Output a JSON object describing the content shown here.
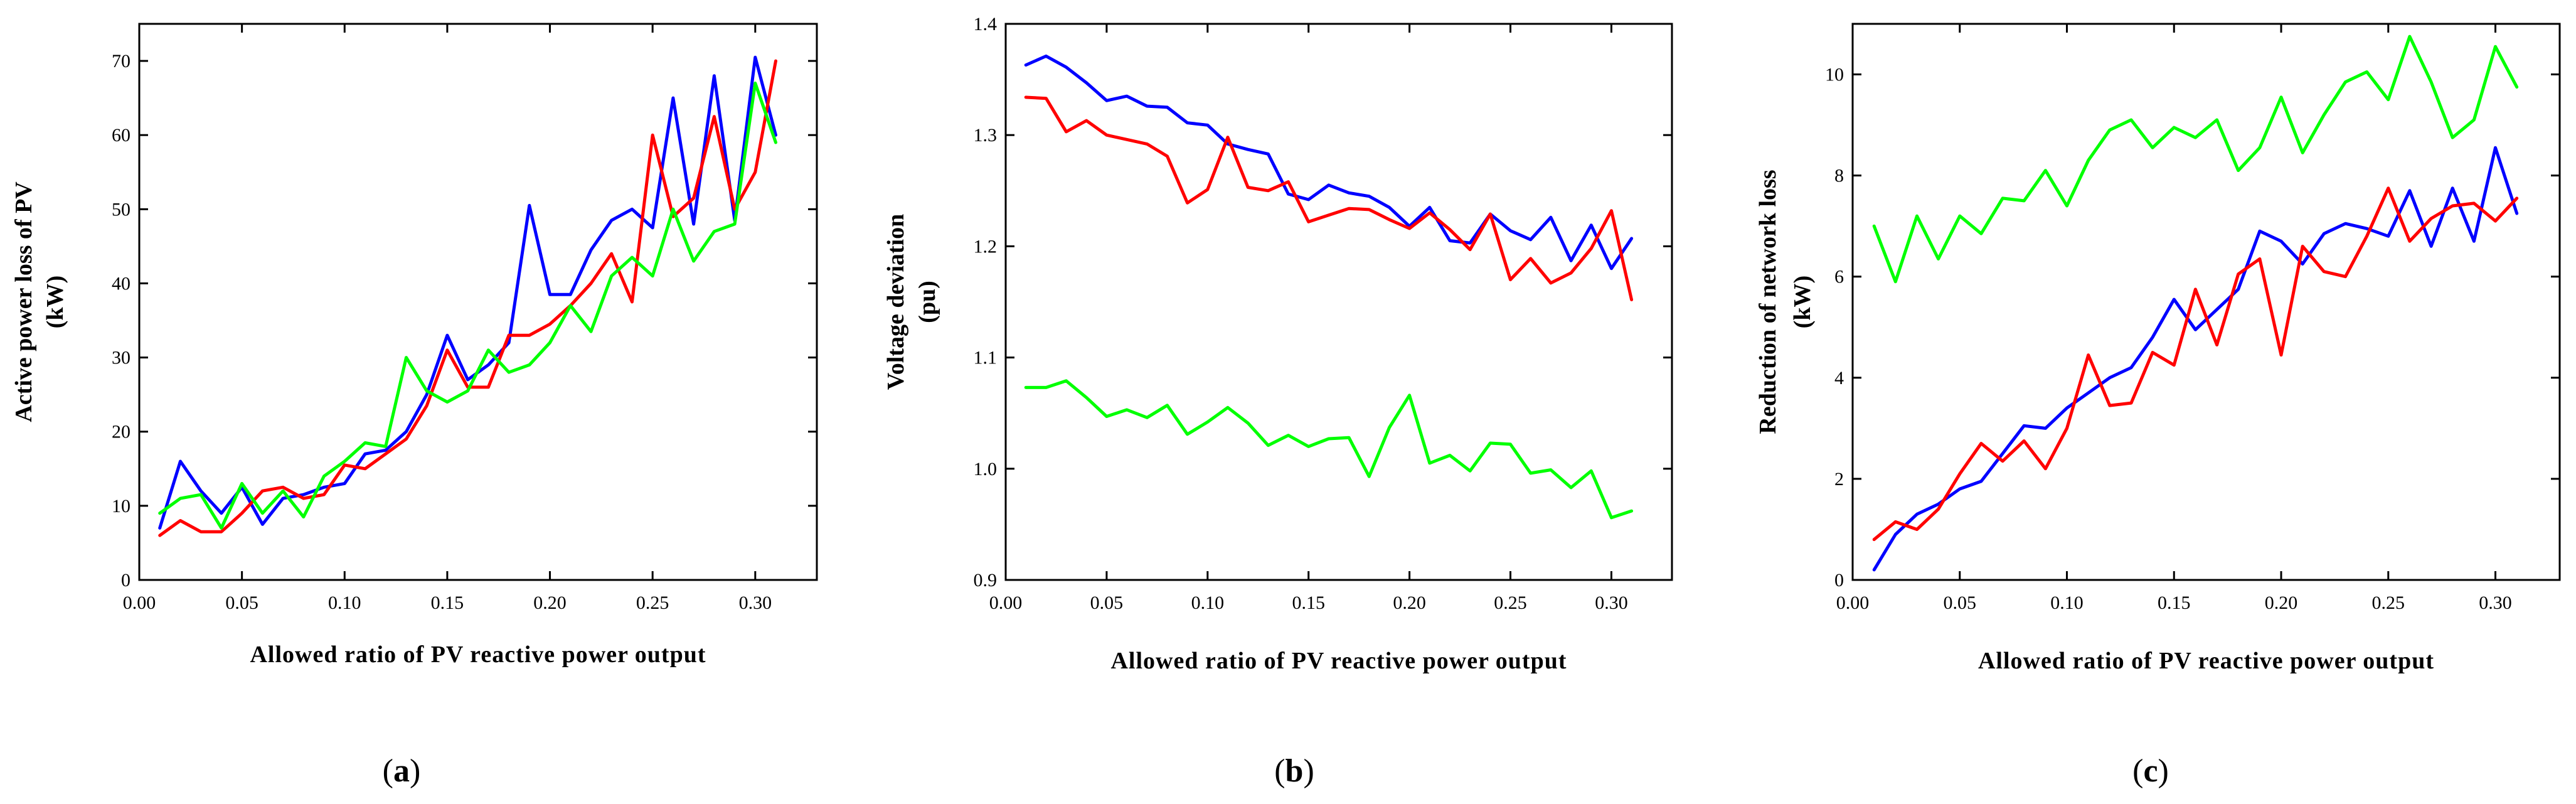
{
  "colors": {
    "blue": "#0000ff",
    "red": "#ff0000",
    "green": "#00ff00"
  },
  "chart_data": [
    {
      "panel": "a",
      "panel_label": "a",
      "type": "line",
      "xlabel": "Allowed ratio of PV reactive power output",
      "ylabel": [
        "Active power loss of PV",
        "(kW)"
      ],
      "xlim": [
        0,
        0.33
      ],
      "ylim": [
        0,
        75
      ],
      "xticks": [
        0,
        0.05,
        0.1,
        0.15,
        0.2,
        0.25,
        0.3
      ],
      "xtick_labels": [
        "0.00",
        "0.05",
        "0.10",
        "0.15",
        "0.20",
        "0.25",
        "0.30"
      ],
      "yticks": [
        0,
        10,
        20,
        30,
        40,
        50,
        60,
        70
      ],
      "ytick_labels": [
        "0",
        "10",
        "20",
        "30",
        "40",
        "50",
        "60",
        "70"
      ],
      "x": [
        0.01,
        0.02,
        0.03,
        0.04,
        0.05,
        0.06,
        0.07,
        0.08,
        0.09,
        0.1,
        0.11,
        0.12,
        0.13,
        0.14,
        0.15,
        0.16,
        0.17,
        0.18,
        0.19,
        0.2,
        0.21,
        0.22,
        0.23,
        0.24,
        0.25,
        0.26,
        0.27,
        0.28,
        0.29,
        0.3,
        0.31
      ],
      "series": [
        {
          "name": "blue",
          "color": "blue",
          "values": [
            7,
            16,
            12,
            9,
            12.5,
            7.5,
            11,
            11.5,
            12.5,
            13,
            17,
            17.5,
            20,
            25,
            33,
            27,
            29,
            32,
            50.5,
            38.5,
            38.5,
            44.5,
            48.5,
            50,
            47.5,
            65,
            48,
            68,
            48.5,
            70.5,
            60
          ]
        },
        {
          "name": "red",
          "color": "red",
          "values": [
            6,
            8,
            6.5,
            6.5,
            9,
            12,
            12.5,
            11,
            11.5,
            15.5,
            15,
            17,
            19,
            23.5,
            31,
            26,
            26,
            33,
            33,
            34.5,
            37,
            40,
            44,
            37.5,
            60,
            49,
            51.5,
            62.5,
            50,
            55,
            70
          ]
        },
        {
          "name": "green",
          "color": "green",
          "values": [
            9,
            11,
            11.5,
            7,
            13,
            9,
            12,
            8.5,
            14,
            16,
            18.5,
            18,
            30,
            25.5,
            24,
            25.5,
            31,
            28,
            29,
            32,
            37,
            33.5,
            41,
            43.5,
            41,
            50,
            43,
            47,
            48,
            67,
            59
          ]
        }
      ]
    },
    {
      "panel": "b",
      "panel_label": "b",
      "type": "line",
      "xlabel": "Allowed ratio of PV reactive power output",
      "ylabel": [
        "Voltage deviation",
        "(pu)"
      ],
      "xlim": [
        0,
        0.33
      ],
      "ylim": [
        0.9,
        1.4
      ],
      "xticks": [
        0,
        0.05,
        0.1,
        0.15,
        0.2,
        0.25,
        0.3
      ],
      "xtick_labels": [
        "0.00",
        "0.05",
        "0.10",
        "0.15",
        "0.20",
        "0.25",
        "0.30"
      ],
      "yticks": [
        0.9,
        1.0,
        1.1,
        1.2,
        1.3,
        1.4
      ],
      "ytick_labels": [
        "0.9",
        "1.0",
        "1.1",
        "1.2",
        "1.3",
        "1.4"
      ],
      "x": [
        0.01,
        0.02,
        0.03,
        0.04,
        0.05,
        0.06,
        0.07,
        0.08,
        0.09,
        0.1,
        0.11,
        0.12,
        0.13,
        0.14,
        0.15,
        0.16,
        0.17,
        0.18,
        0.19,
        0.2,
        0.21,
        0.22,
        0.23,
        0.24,
        0.25,
        0.26,
        0.27,
        0.28,
        0.29,
        0.3,
        0.31
      ],
      "series": [
        {
          "name": "blue",
          "color": "blue",
          "values": [
            1.363,
            1.371,
            1.361,
            1.347,
            1.331,
            1.335,
            1.326,
            1.325,
            1.311,
            1.309,
            1.292,
            1.287,
            1.283,
            1.247,
            1.242,
            1.255,
            1.248,
            1.245,
            1.235,
            1.218,
            1.235,
            1.205,
            1.203,
            1.229,
            1.214,
            1.206,
            1.226,
            1.187,
            1.219,
            1.18,
            1.207
          ]
        },
        {
          "name": "red",
          "color": "red",
          "values": [
            1.334,
            1.333,
            1.303,
            1.313,
            1.3,
            1.296,
            1.292,
            1.281,
            1.239,
            1.251,
            1.298,
            1.253,
            1.25,
            1.258,
            1.222,
            1.228,
            1.234,
            1.233,
            1.224,
            1.216,
            1.23,
            1.215,
            1.197,
            1.229,
            1.17,
            1.189,
            1.167,
            1.176,
            1.198,
            1.232,
            1.152
          ]
        },
        {
          "name": "green",
          "color": "green",
          "values": [
            1.073,
            1.073,
            1.079,
            1.064,
            1.047,
            1.053,
            1.046,
            1.057,
            1.031,
            1.042,
            1.055,
            1.041,
            1.021,
            1.03,
            1.02,
            1.027,
            1.028,
            0.993,
            1.037,
            1.066,
            1.005,
            1.012,
            0.998,
            1.023,
            1.022,
            0.996,
            0.999,
            0.983,
            0.998,
            0.956,
            0.962
          ]
        }
      ]
    },
    {
      "panel": "c",
      "panel_label": "c",
      "type": "line",
      "xlabel": "Allowed ratio of PV reactive power output",
      "ylabel": [
        "Reduction of network loss",
        "(kW)"
      ],
      "xlim": [
        0,
        0.33
      ],
      "ylim": [
        0,
        11
      ],
      "xticks": [
        0,
        0.05,
        0.1,
        0.15,
        0.2,
        0.25,
        0.3
      ],
      "xtick_labels": [
        "0.00",
        "0.05",
        "0.10",
        "0.15",
        "0.20",
        "0.25",
        "0.30"
      ],
      "yticks": [
        0,
        2,
        4,
        6,
        8,
        10
      ],
      "ytick_labels": [
        "0",
        "2",
        "4",
        "6",
        "8",
        "10"
      ],
      "x": [
        0.01,
        0.02,
        0.03,
        0.04,
        0.05,
        0.06,
        0.07,
        0.08,
        0.09,
        0.1,
        0.11,
        0.12,
        0.13,
        0.14,
        0.15,
        0.16,
        0.17,
        0.18,
        0.19,
        0.2,
        0.21,
        0.22,
        0.23,
        0.24,
        0.25,
        0.26,
        0.27,
        0.28,
        0.29,
        0.3,
        0.31
      ],
      "series": [
        {
          "name": "blue",
          "color": "blue",
          "values": [
            0.2,
            0.9,
            1.3,
            1.5,
            1.8,
            1.95,
            2.5,
            3.05,
            3.0,
            3.4,
            3.7,
            4.0,
            4.2,
            4.8,
            5.55,
            4.95,
            5.35,
            5.75,
            6.9,
            6.7,
            6.25,
            6.85,
            7.05,
            6.95,
            6.8,
            7.7,
            6.6,
            7.75,
            6.7,
            8.55,
            7.25
          ]
        },
        {
          "name": "red",
          "color": "red",
          "values": [
            0.8,
            1.15,
            1.0,
            1.4,
            2.1,
            2.7,
            2.35,
            2.75,
            2.2,
            3.0,
            4.45,
            3.45,
            3.5,
            4.5,
            4.25,
            5.75,
            4.65,
            6.05,
            6.35,
            4.45,
            6.6,
            6.1,
            6.0,
            6.8,
            7.75,
            6.7,
            7.15,
            7.4,
            7.45,
            7.1,
            7.55
          ]
        },
        {
          "name": "green",
          "color": "green",
          "values": [
            7.0,
            5.9,
            7.2,
            6.35,
            7.2,
            6.85,
            7.55,
            7.5,
            8.1,
            7.4,
            8.3,
            8.9,
            9.1,
            8.55,
            8.95,
            8.75,
            9.1,
            8.1,
            8.55,
            9.55,
            8.45,
            9.2,
            9.85,
            10.05,
            9.5,
            10.75,
            9.85,
            8.75,
            9.1,
            10.55,
            9.75
          ]
        }
      ]
    }
  ]
}
